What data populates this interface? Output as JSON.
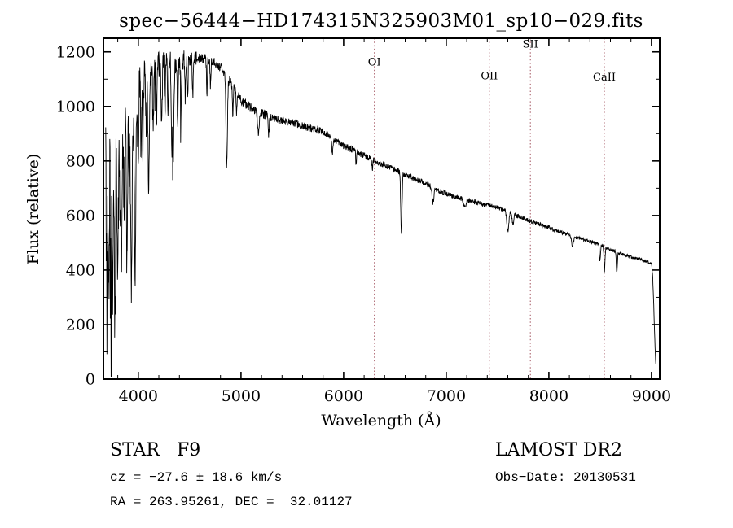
{
  "chart_data": {
    "type": "line",
    "title": "spec−56444−HD174315N325903M01_sp10−029.fits",
    "xlabel": "Wavelength (Å)",
    "ylabel": "Flux (relative)",
    "xlim": [
      3660,
      9080
    ],
    "ylim": [
      0,
      1250
    ],
    "xticks": [
      4000,
      5000,
      6000,
      7000,
      8000,
      9000
    ],
    "yticks": [
      0,
      200,
      400,
      600,
      800,
      1000,
      1200
    ],
    "x_minor_step": 200,
    "y_minor_step": 100,
    "grid": false,
    "colors": {
      "axis": "#000000",
      "spectrum": "#000000",
      "marker": "#a2525e",
      "background": "#ffffff"
    },
    "spectral_lines": [
      {
        "label": "OI",
        "wavelength": 6300,
        "label_flux": 1150
      },
      {
        "label": "OII",
        "wavelength": 7420,
        "label_flux": 1100
      },
      {
        "label": "SII",
        "wavelength": 7820,
        "label_flux": 1215
      },
      {
        "label": "CaII",
        "wavelength": 8540,
        "label_flux": 1095
      }
    ],
    "continuum": [
      [
        3680,
        810
      ],
      [
        3720,
        840
      ],
      [
        3760,
        868
      ],
      [
        3800,
        898
      ],
      [
        3840,
        928
      ],
      [
        3880,
        952
      ],
      [
        3920,
        980
      ],
      [
        3960,
        1015
      ],
      [
        4000,
        1060
      ],
      [
        4060,
        1100
      ],
      [
        4120,
        1132
      ],
      [
        4200,
        1152
      ],
      [
        4300,
        1160
      ],
      [
        4400,
        1168
      ],
      [
        4500,
        1172
      ],
      [
        4600,
        1180
      ],
      [
        4700,
        1172
      ],
      [
        4800,
        1148
      ],
      [
        4900,
        1088
      ],
      [
        5000,
        1020
      ],
      [
        5100,
        995
      ],
      [
        5200,
        975
      ],
      [
        5300,
        958
      ],
      [
        5400,
        948
      ],
      [
        5500,
        940
      ],
      [
        5600,
        928
      ],
      [
        5700,
        918
      ],
      [
        5800,
        908
      ],
      [
        5900,
        878
      ],
      [
        6000,
        855
      ],
      [
        6100,
        840
      ],
      [
        6200,
        820
      ],
      [
        6300,
        800
      ],
      [
        6400,
        785
      ],
      [
        6500,
        768
      ],
      [
        6600,
        750
      ],
      [
        6700,
        733
      ],
      [
        6800,
        718
      ],
      [
        6900,
        696
      ],
      [
        7000,
        678
      ],
      [
        7100,
        668
      ],
      [
        7200,
        658
      ],
      [
        7300,
        646
      ],
      [
        7400,
        638
      ],
      [
        7500,
        628
      ],
      [
        7600,
        616
      ],
      [
        7700,
        598
      ],
      [
        7800,
        582
      ],
      [
        7900,
        568
      ],
      [
        8000,
        556
      ],
      [
        8100,
        540
      ],
      [
        8200,
        528
      ],
      [
        8300,
        516
      ],
      [
        8400,
        505
      ],
      [
        8500,
        492
      ],
      [
        8600,
        475
      ],
      [
        8700,
        460
      ],
      [
        8800,
        448
      ],
      [
        8900,
        438
      ],
      [
        8960,
        430
      ],
      [
        9000,
        422
      ],
      [
        9012,
        375
      ],
      [
        9024,
        245
      ],
      [
        9034,
        118
      ],
      [
        9042,
        52
      ]
    ],
    "absorption_line_format": [
      "wavelength_A",
      "sigma_A",
      "depth"
    ],
    "absorption_lines": [
      [
        3695,
        6,
        620
      ],
      [
        3712,
        5,
        380
      ],
      [
        3734,
        6,
        460
      ],
      [
        3750,
        6,
        520
      ],
      [
        3771,
        6,
        420
      ],
      [
        3798,
        6,
        470
      ],
      [
        3820,
        5,
        280
      ],
      [
        3835,
        6,
        500
      ],
      [
        3860,
        5,
        300
      ],
      [
        3889,
        6,
        540
      ],
      [
        3910,
        4,
        220
      ],
      [
        3933,
        7,
        640
      ],
      [
        3968,
        7,
        600
      ],
      [
        4000,
        4,
        200
      ],
      [
        4026,
        4,
        220
      ],
      [
        4045,
        4,
        230
      ],
      [
        4077,
        4,
        200
      ],
      [
        4101,
        7,
        390
      ],
      [
        4144,
        5,
        200
      ],
      [
        4178,
        4,
        170
      ],
      [
        4227,
        5,
        250
      ],
      [
        4260,
        4,
        190
      ],
      [
        4290,
        4,
        200
      ],
      [
        4325,
        5,
        260
      ],
      [
        4340,
        7,
        350
      ],
      [
        4383,
        5,
        230
      ],
      [
        4415,
        4,
        190
      ],
      [
        4457,
        4,
        130
      ],
      [
        4481,
        4,
        120
      ],
      [
        4530,
        4,
        140
      ],
      [
        4668,
        4,
        130
      ],
      [
        4703,
        4,
        100
      ],
      [
        4861,
        7,
        330
      ],
      [
        4920,
        4,
        100
      ],
      [
        4957,
        4,
        80
      ],
      [
        5170,
        8,
        85
      ],
      [
        5270,
        5,
        65
      ],
      [
        5890,
        6,
        50
      ],
      [
        6122,
        4,
        45
      ],
      [
        6280,
        4,
        35
      ],
      [
        6563,
        6,
        230
      ],
      [
        6870,
        9,
        55
      ],
      [
        7180,
        14,
        30
      ],
      [
        7600,
        10,
        70
      ],
      [
        7650,
        8,
        40
      ],
      [
        8230,
        9,
        35
      ],
      [
        8498,
        5,
        60
      ],
      [
        8542,
        5,
        90
      ],
      [
        8662,
        5,
        75
      ]
    ],
    "noise": {
      "seed": 20130531,
      "blue_extra_below_A": 3740,
      "blue_extra_factor": 2.2
    },
    "sampling": {
      "start": 3682,
      "end": 9042,
      "step": 2.5
    }
  },
  "footer": {
    "class_label": "STAR   F9",
    "survey": "LAMOST DR2",
    "cz": "cz = −27.6 ± 18.6 km/s",
    "obs_date": "Obs−Date: 20130531",
    "coords": "RA = 263.95261, DEC =  32.01127"
  }
}
